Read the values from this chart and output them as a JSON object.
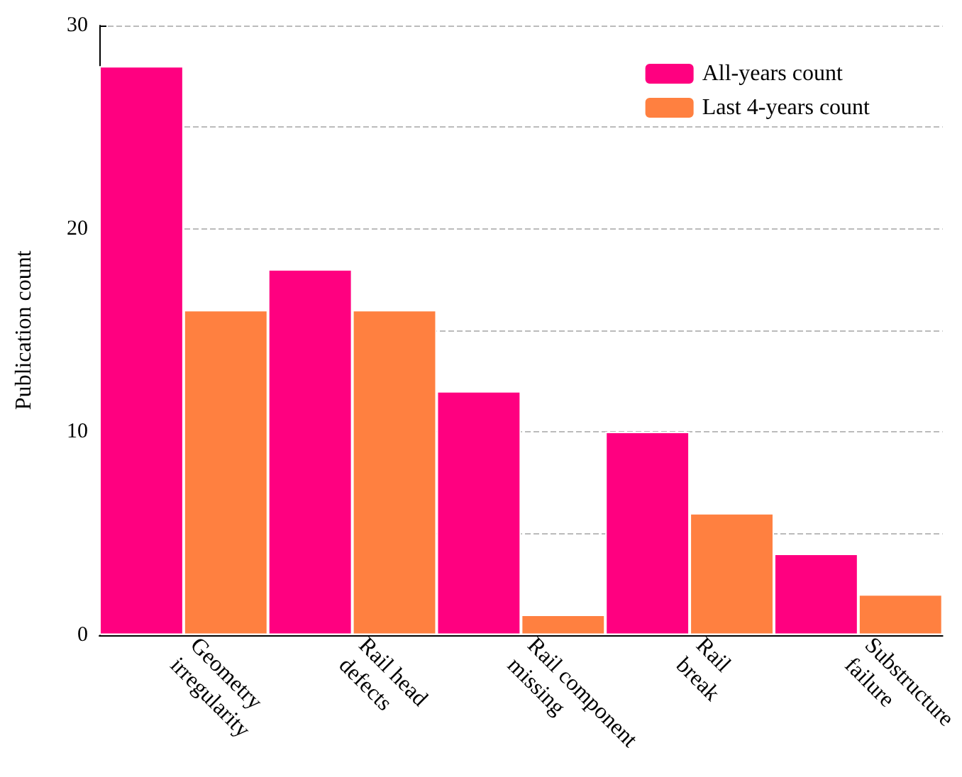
{
  "chart_data": {
    "type": "bar",
    "ylabel": "Publication count",
    "categories": [
      "Geometry\nirregularity",
      "Rail head\ndefects",
      "Rail component\nmissing",
      "Rail\nbreak",
      "Substructure\nfailure"
    ],
    "series": [
      {
        "name": "All-years count",
        "color": "#ff0080",
        "values": [
          28,
          18,
          12,
          10,
          4
        ]
      },
      {
        "name": "Last 4-years count",
        "color": "#ff8040",
        "values": [
          16,
          16,
          1,
          6,
          2
        ]
      }
    ],
    "ylim": [
      0,
      30
    ],
    "yticks": [
      0,
      {
        "value": 5,
        "label": null
      },
      10,
      {
        "value": 15,
        "label": null
      },
      20,
      {
        "value": 25,
        "label": null
      },
      30
    ],
    "grid": "y",
    "legend": "top right"
  }
}
